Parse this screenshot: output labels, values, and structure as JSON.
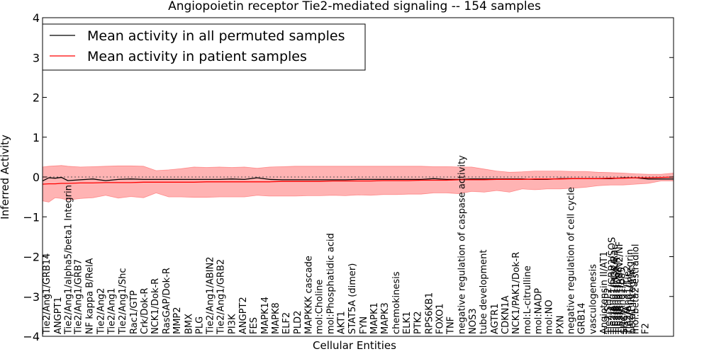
{
  "chart_data": {
    "type": "line",
    "title": "Angiopoietin receptor Tie2-mediated signaling -- 154 samples",
    "xlabel": "Cellular Entities",
    "ylabel": "Inferred Activity",
    "ylim": [
      -4,
      4
    ],
    "yticks": [
      -4,
      -3,
      -2,
      -1,
      0,
      1,
      2,
      3,
      4
    ],
    "ytick_labels": [
      "−4",
      "−3",
      "−2",
      "−1",
      "0",
      "1",
      "2",
      "3",
      "4"
    ],
    "xlim": [
      0,
      100
    ],
    "legend": {
      "position": "top-left",
      "entries": [
        {
          "label": "Mean activity in all permuted samples",
          "color": "#000000"
        },
        {
          "label": "Mean activity in patient samples",
          "color": "#ff0000"
        }
      ]
    },
    "colors": {
      "permuted": "#000000",
      "patient": "#ff0000",
      "band": "#ff9999",
      "zero_line": "#555555"
    },
    "x": [
      0,
      1,
      2,
      3,
      4,
      6,
      8,
      10,
      12,
      14,
      16,
      18,
      20,
      22,
      24,
      26,
      28,
      30,
      32,
      34,
      36,
      38,
      40,
      42,
      44,
      46,
      48,
      50,
      52,
      54,
      56,
      58,
      60,
      62,
      64,
      66,
      68,
      70,
      72,
      74,
      76,
      78,
      80,
      82,
      84,
      86,
      88,
      90,
      92,
      94,
      96,
      98,
      100
    ],
    "series": [
      {
        "name": "Mean activity in all permuted samples",
        "values": [
          -0.1,
          -0.02,
          -0.03,
          -0.01,
          -0.09,
          -0.07,
          -0.05,
          -0.09,
          -0.06,
          -0.05,
          -0.06,
          -0.06,
          -0.06,
          -0.06,
          -0.06,
          -0.06,
          -0.06,
          -0.05,
          -0.06,
          -0.02,
          -0.06,
          -0.07,
          -0.07,
          -0.07,
          -0.07,
          -0.07,
          -0.07,
          -0.06,
          -0.06,
          -0.06,
          -0.06,
          -0.06,
          -0.06,
          -0.04,
          -0.06,
          -0.06,
          -0.05,
          -0.05,
          -0.05,
          -0.05,
          -0.05,
          -0.06,
          -0.06,
          -0.04,
          -0.04,
          -0.04,
          -0.04,
          -0.04,
          -0.02,
          -0.02,
          -0.05,
          -0.05,
          -0.05
        ]
      },
      {
        "name": "Mean activity in patient samples",
        "values": [
          -0.18,
          -0.17,
          -0.17,
          -0.16,
          -0.16,
          -0.15,
          -0.15,
          -0.14,
          -0.14,
          -0.14,
          -0.13,
          -0.13,
          -0.13,
          -0.13,
          -0.13,
          -0.12,
          -0.12,
          -0.12,
          -0.12,
          -0.12,
          -0.12,
          -0.11,
          -0.11,
          -0.11,
          -0.11,
          -0.1,
          -0.1,
          -0.1,
          -0.1,
          -0.09,
          -0.09,
          -0.09,
          -0.08,
          -0.08,
          -0.08,
          -0.07,
          -0.07,
          -0.07,
          -0.06,
          -0.06,
          -0.06,
          -0.05,
          -0.05,
          -0.05,
          -0.04,
          -0.04,
          -0.04,
          -0.03,
          -0.03,
          -0.02,
          -0.02,
          -0.01,
          0.0
        ]
      }
    ],
    "band": {
      "upper": [
        0.25,
        0.27,
        0.28,
        0.29,
        0.27,
        0.25,
        0.26,
        0.27,
        0.28,
        0.28,
        0.27,
        0.16,
        0.18,
        0.21,
        0.25,
        0.24,
        0.25,
        0.24,
        0.25,
        0.22,
        0.25,
        0.26,
        0.27,
        0.27,
        0.27,
        0.27,
        0.27,
        0.27,
        0.27,
        0.27,
        0.27,
        0.27,
        0.27,
        0.26,
        0.26,
        0.25,
        0.25,
        0.2,
        0.15,
        0.12,
        0.13,
        0.15,
        0.15,
        0.15,
        0.14,
        0.14,
        0.12,
        0.11,
        0.1,
        0.08,
        0.07,
        0.07,
        0.1
      ],
      "lower": [
        -0.6,
        -0.63,
        -0.52,
        -0.54,
        -0.58,
        -0.54,
        -0.52,
        -0.46,
        -0.53,
        -0.49,
        -0.52,
        -0.4,
        -0.5,
        -0.5,
        -0.51,
        -0.51,
        -0.5,
        -0.5,
        -0.5,
        -0.46,
        -0.48,
        -0.48,
        -0.48,
        -0.47,
        -0.47,
        -0.46,
        -0.47,
        -0.45,
        -0.46,
        -0.44,
        -0.44,
        -0.43,
        -0.43,
        -0.4,
        -0.4,
        -0.42,
        -0.36,
        -0.38,
        -0.34,
        -0.38,
        -0.3,
        -0.32,
        -0.3,
        -0.3,
        -0.28,
        -0.26,
        -0.22,
        -0.2,
        -0.2,
        -0.18,
        -0.16,
        -0.1,
        -0.1
      ]
    },
    "entity_labels": [
      {
        "x": 0.0,
        "label": "Tie2/Ang1/GRB14"
      },
      {
        "x": 1.8,
        "label": "ANGPT1"
      },
      {
        "x": 3.4,
        "label": "Tie2/Ang1/alpha5/beta1 Integrin"
      },
      {
        "x": 5.0,
        "label": "Tie2/Ang1/GRB7"
      },
      {
        "x": 6.8,
        "label": "NF kappa B/RelA"
      },
      {
        "x": 8.6,
        "label": "Tie2/Ang2"
      },
      {
        "x": 10.3,
        "label": "Tie2/Ang1"
      },
      {
        "x": 12.0,
        "label": "Tie2/Ang1/Shc"
      },
      {
        "x": 13.8,
        "label": "Rac1/GTP"
      },
      {
        "x": 15.5,
        "label": "Crk/Dok-R"
      },
      {
        "x": 17.2,
        "label": "NCK1/Dok-R"
      },
      {
        "x": 19.0,
        "label": "RasGAP/Dok-R"
      },
      {
        "x": 20.7,
        "label": "MMP2"
      },
      {
        "x": 22.5,
        "label": "BMX"
      },
      {
        "x": 24.2,
        "label": "PLG"
      },
      {
        "x": 25.9,
        "label": "Tie2/Ang1/ABIN2"
      },
      {
        "x": 27.6,
        "label": "Tie2/Ang1/GRB2"
      },
      {
        "x": 29.4,
        "label": "PI3K"
      },
      {
        "x": 31.1,
        "label": "ANGPT2"
      },
      {
        "x": 32.8,
        "label": "FES"
      },
      {
        "x": 34.6,
        "label": "MAPK14"
      },
      {
        "x": 36.3,
        "label": "MAPK8"
      },
      {
        "x": 38.0,
        "label": "ELF2"
      },
      {
        "x": 39.8,
        "label": "PLD2"
      },
      {
        "x": 41.5,
        "label": "MAPKKK cascade"
      },
      {
        "x": 43.2,
        "label": "mol:Choline"
      },
      {
        "x": 45.0,
        "label": "mol:Phosphatidic acid"
      },
      {
        "x": 46.7,
        "label": "AKT1"
      },
      {
        "x": 48.4,
        "label": "STAT5A (dimer)"
      },
      {
        "x": 50.2,
        "label": "FYN"
      },
      {
        "x": 51.9,
        "label": "MAPK1"
      },
      {
        "x": 53.6,
        "label": "MAPK3"
      },
      {
        "x": 55.4,
        "label": "chemokinesis"
      },
      {
        "x": 57.1,
        "label": "ELK1"
      },
      {
        "x": 58.8,
        "label": "PTK2"
      },
      {
        "x": 60.6,
        "label": "RPS6KB1"
      },
      {
        "x": 62.3,
        "label": "FOXO1"
      },
      {
        "x": 64.0,
        "label": "TNF"
      },
      {
        "x": 65.8,
        "label": "negative regulation of caspase activity"
      },
      {
        "x": 67.5,
        "label": "NOS3"
      },
      {
        "x": 69.2,
        "label": "tube development"
      },
      {
        "x": 71.0,
        "label": "AGTR1"
      },
      {
        "x": 72.7,
        "label": "CDKN1A"
      },
      {
        "x": 74.4,
        "label": "NCK1/PAK1/Dok-R"
      },
      {
        "x": 76.2,
        "label": "mol:L-citrulline"
      },
      {
        "x": 77.9,
        "label": "mol:NADP"
      },
      {
        "x": 79.6,
        "label": "mol:NO"
      },
      {
        "x": 81.4,
        "label": "PXN"
      },
      {
        "x": 83.1,
        "label": "negative regulation of cell cycle"
      },
      {
        "x": 84.8,
        "label": "GRB14"
      },
      {
        "x": 86.6,
        "label": "vasculogenesis"
      },
      {
        "x": 88.3,
        "label": "Angiotensin II/AT1"
      },
      {
        "x": 89.0,
        "label": "Tie2/SHP2"
      },
      {
        "x": 89.6,
        "label": "Tie2/Ang1/GRB2/SOS"
      },
      {
        "x": 90.0,
        "label": "Tie2/Ang1/PI3K/Rac"
      },
      {
        "x": 90.4,
        "label": "Tie2/Ang1/Dok-R"
      },
      {
        "x": 90.8,
        "label": "Tie2/Ang1/ABIN2/NF"
      },
      {
        "x": 91.2,
        "label": "Tie2/Ang1/p85"
      },
      {
        "x": 91.6,
        "label": "SHC1"
      },
      {
        "x": 92.0,
        "label": "Tie2/Ang1/Tie2"
      },
      {
        "x": 92.4,
        "label": "Tie2/Ang1/integrin"
      },
      {
        "x": 92.8,
        "label": "beta1 integrin"
      },
      {
        "x": 93.3,
        "label": "mol:beta2-estradiol"
      },
      {
        "x": 94.9,
        "label": "F2"
      }
    ]
  }
}
